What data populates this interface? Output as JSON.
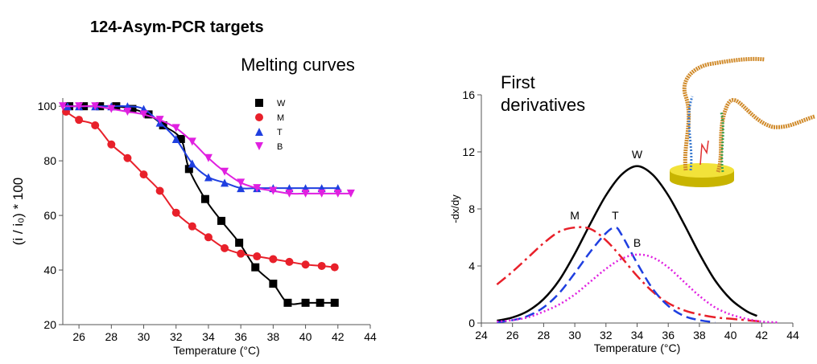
{
  "header": {
    "title": "124-Asym-PCR targets"
  },
  "chart_data": [
    {
      "type": "line",
      "title": "Melting curves",
      "x_label": "Temperature (°C)",
      "y_label": "(i / i₀) * 100",
      "xlim": [
        25,
        44
      ],
      "ylim": [
        20,
        103
      ],
      "xticks": [
        26,
        28,
        30,
        32,
        34,
        36,
        38,
        40,
        42,
        44
      ],
      "yticks": [
        20,
        40,
        60,
        80,
        100
      ],
      "markers": true,
      "legend": "top-right",
      "series": [
        {
          "name": "W",
          "color": "#000000",
          "marker": "square",
          "x": [
            25.4,
            26.3,
            27.3,
            28.3,
            29.3,
            30.3,
            31.2,
            32.3,
            32.8,
            33.8,
            34.8,
            35.9,
            36.9,
            38,
            38.9,
            40,
            40.9,
            41.8
          ],
          "values": [
            100,
            100,
            100,
            100,
            99,
            97,
            93,
            88,
            77,
            66,
            58,
            50,
            41,
            35,
            28,
            28,
            28,
            28
          ]
        },
        {
          "name": "M",
          "color": "#e8202a",
          "marker": "circle",
          "x": [
            25.2,
            26,
            27,
            28,
            29,
            30,
            31,
            32,
            33,
            34,
            35,
            36,
            37,
            38,
            39,
            40,
            41,
            41.8
          ],
          "values": [
            98,
            95,
            93,
            86,
            81,
            75,
            69,
            61,
            56,
            52,
            48,
            46,
            45,
            44,
            43,
            42,
            41.5,
            41
          ]
        },
        {
          "name": "T",
          "color": "#1f3fe0",
          "marker": "triangle",
          "x": [
            25.3,
            26,
            27,
            28,
            29,
            30,
            31,
            32,
            33,
            34,
            35,
            36,
            37,
            38,
            39,
            40,
            41,
            42
          ],
          "values": [
            100,
            100,
            100,
            100,
            100,
            99,
            94,
            88,
            79,
            74,
            72,
            70,
            70,
            70,
            70,
            70,
            70,
            70
          ]
        },
        {
          "name": "B",
          "color": "#e020e0",
          "marker": "triangle-down",
          "x": [
            25,
            26,
            27,
            28,
            29,
            30,
            31,
            32,
            33,
            34,
            35,
            36,
            37,
            38,
            39,
            40,
            41,
            42,
            42.8
          ],
          "values": [
            100,
            100,
            100,
            99,
            98,
            97,
            95,
            92,
            87,
            81,
            76,
            72,
            70,
            69,
            68,
            68,
            68,
            68,
            68
          ]
        }
      ]
    },
    {
      "type": "line",
      "title": "First derivatives",
      "x_label": "Temperature (°C)",
      "y_label": "-dx/dy",
      "xlim": [
        24,
        44
      ],
      "ylim": [
        0,
        16
      ],
      "xticks": [
        24,
        26,
        28,
        30,
        32,
        34,
        36,
        38,
        40,
        42,
        44
      ],
      "yticks": [
        0,
        4,
        8,
        12,
        16
      ],
      "markers": false,
      "labels_at_peak": true,
      "series": [
        {
          "name": "W",
          "color": "#000000",
          "line_style": "solid",
          "x": [
            25,
            26,
            27,
            28,
            29,
            30,
            31,
            32,
            33,
            34,
            35,
            36,
            37,
            38,
            39,
            40,
            41,
            41.7
          ],
          "values": [
            0.16,
            0.39,
            0.85,
            1.68,
            3.0,
            4.86,
            6.97,
            8.95,
            10.4,
            11,
            10.4,
            8.95,
            6.97,
            4.86,
            3.0,
            1.68,
            0.85,
            0.5
          ]
        },
        {
          "name": "M",
          "color": "#e8202a",
          "line_style": "dashdot",
          "x": [
            25,
            26,
            27,
            28,
            29,
            30,
            31,
            32,
            33,
            34,
            35,
            36,
            37,
            38,
            39,
            40,
            41,
            42
          ],
          "values": [
            2.7,
            3.6,
            4.6,
            5.6,
            6.4,
            6.7,
            6.6,
            5.8,
            4.6,
            3.3,
            2.2,
            1.4,
            0.9,
            0.6,
            0.4,
            0.3,
            0.2,
            0.1
          ]
        },
        {
          "name": "T",
          "color": "#1f3fe0",
          "line_style": "dashed",
          "x": [
            25,
            26,
            27,
            28,
            29,
            30,
            31,
            32,
            32.6,
            33,
            34,
            35,
            36,
            37,
            38,
            39
          ],
          "values": [
            0.05,
            0.2,
            0.5,
            1.1,
            2.1,
            3.5,
            5,
            6.3,
            6.7,
            6.2,
            4.2,
            2.4,
            1.2,
            0.5,
            0.2,
            0.05
          ]
        },
        {
          "name": "B",
          "color": "#e020e0",
          "line_style": "dotted",
          "x": [
            25,
            26,
            27,
            28,
            29,
            30,
            31,
            32,
            33,
            34,
            35,
            36,
            37,
            38,
            39,
            40,
            41,
            42,
            43
          ],
          "values": [
            0.1,
            0.2,
            0.4,
            0.8,
            1.3,
            2.0,
            2.9,
            3.8,
            4.5,
            4.8,
            4.6,
            3.9,
            2.9,
            1.9,
            1.1,
            0.6,
            0.3,
            0.1,
            0.05
          ]
        }
      ]
    }
  ]
}
